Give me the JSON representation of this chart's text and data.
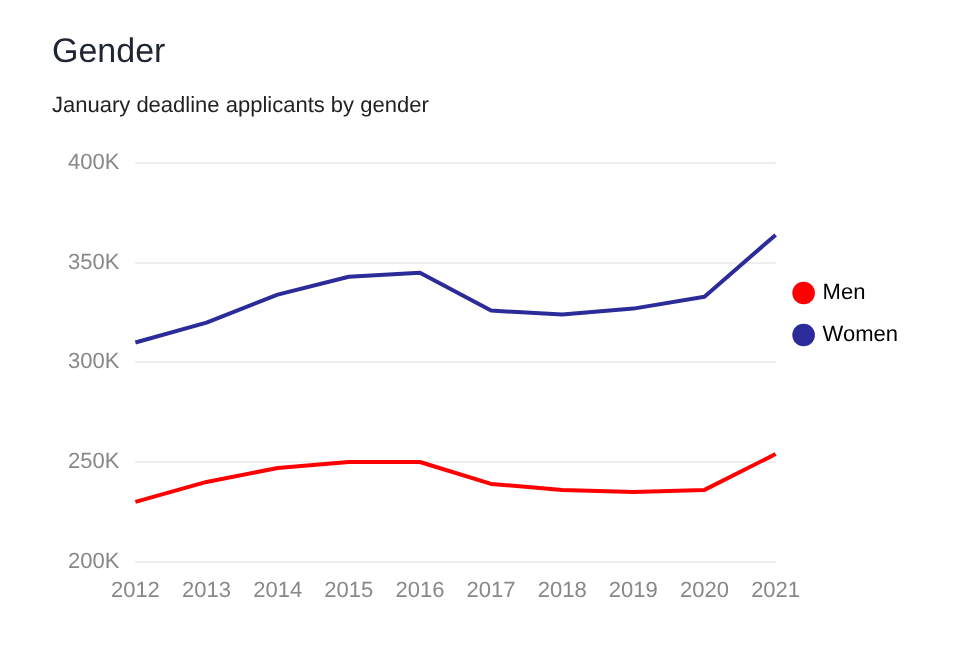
{
  "chart_data": {
    "type": "line",
    "title": "Gender",
    "subtitle": "January deadline applicants by gender",
    "categories": [
      "2012",
      "2013",
      "2014",
      "2015",
      "2016",
      "2017",
      "2018",
      "2019",
      "2020",
      "2021"
    ],
    "series": [
      {
        "name": "Men",
        "color": "#ff0000",
        "values": [
          230000,
          240000,
          247000,
          250000,
          250000,
          239000,
          236000,
          235000,
          236000,
          254000
        ]
      },
      {
        "name": "Women",
        "color": "#2b2b9a",
        "values": [
          310000,
          320000,
          334000,
          343000,
          345000,
          326000,
          324000,
          327000,
          333000,
          364000
        ]
      }
    ],
    "ylim": [
      200000,
      400000
    ],
    "yticks": [
      {
        "value": 200000,
        "label": "200K"
      },
      {
        "value": 250000,
        "label": "250K"
      },
      {
        "value": 300000,
        "label": "300K"
      },
      {
        "value": 350000,
        "label": "350K"
      },
      {
        "value": 400000,
        "label": "400K"
      }
    ],
    "grid": "y",
    "legend": "right",
    "marker": "none",
    "line_style": "solid"
  }
}
